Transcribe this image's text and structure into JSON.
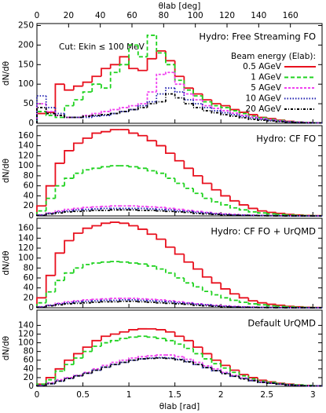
{
  "chart_data": [
    {
      "type": "histogram",
      "title": "Hydro: Free Streaming FO",
      "annotation": "Cut: Ekin ≤ 100 MeV",
      "x2label": "θlab [deg]",
      "x2lim": [
        0,
        180
      ],
      "x2ticks": [
        0,
        20,
        40,
        60,
        80,
        100,
        120,
        140,
        160
      ],
      "ylabel": "dN/dθ",
      "legend_title": "Beam energy (Elab):",
      "legend": "upper right",
      "xlim": [
        0,
        3.1
      ],
      "xticks": [
        0,
        0.5,
        1,
        1.5,
        2,
        2.5,
        3
      ],
      "ylim": [
        0,
        255
      ],
      "yticks": [
        0,
        50,
        100,
        150,
        200,
        250
      ],
      "bins": [
        0,
        0.1,
        0.2,
        0.3,
        0.4,
        0.5,
        0.6,
        0.7,
        0.8,
        0.9,
        1.0,
        1.1,
        1.2,
        1.3,
        1.4,
        1.5,
        1.6,
        1.7,
        1.8,
        1.9,
        2.0,
        2.1,
        2.2,
        2.3,
        2.4,
        2.5,
        2.6,
        2.7,
        2.8,
        2.9,
        3.0,
        3.1
      ],
      "series": [
        {
          "name": "0.5 AGeV",
          "color": "#e8101e",
          "linestyle": "solid",
          "values": [
            25,
            28,
            100,
            85,
            95,
            105,
            120,
            140,
            150,
            170,
            140,
            135,
            165,
            185,
            160,
            120,
            90,
            75,
            60,
            50,
            45,
            35,
            28,
            22,
            15,
            12,
            8,
            5,
            3,
            2,
            1
          ]
        },
        {
          "name": "1 AGeV",
          "color": "#1fd21f",
          "linestyle": "dashed",
          "values": [
            30,
            20,
            15,
            45,
            60,
            80,
            100,
            90,
            130,
            150,
            200,
            170,
            225,
            180,
            150,
            110,
            85,
            70,
            55,
            45,
            40,
            32,
            25,
            18,
            14,
            10,
            7,
            4,
            3,
            2,
            1
          ]
        },
        {
          "name": "5 AGeV",
          "color": "#f040f0",
          "linestyle": "short-dashed",
          "values": [
            50,
            30,
            20,
            15,
            15,
            20,
            25,
            30,
            35,
            40,
            45,
            50,
            80,
            125,
            130,
            100,
            75,
            60,
            45,
            38,
            32,
            26,
            20,
            16,
            12,
            9,
            6,
            4,
            3,
            2,
            1
          ]
        },
        {
          "name": "10 AGeV",
          "color": "#2020b0",
          "linestyle": "dotted",
          "values": [
            70,
            40,
            25,
            15,
            15,
            15,
            18,
            20,
            25,
            30,
            35,
            45,
            55,
            75,
            90,
            80,
            60,
            50,
            40,
            32,
            27,
            22,
            17,
            13,
            10,
            7,
            5,
            3,
            2,
            1,
            1
          ]
        },
        {
          "name": "20 AGeV",
          "color": "#000000",
          "linestyle": "dash-dot",
          "values": [
            40,
            25,
            20,
            15,
            15,
            18,
            20,
            22,
            25,
            30,
            35,
            40,
            50,
            55,
            75,
            65,
            50,
            40,
            32,
            27,
            22,
            18,
            14,
            10,
            8,
            6,
            4,
            3,
            2,
            1,
            1
          ]
        }
      ]
    },
    {
      "type": "histogram",
      "title": "Hydro: CF FO",
      "ylabel": "dN/dθ",
      "xlim": [
        0,
        3.1
      ],
      "xticks": [
        0,
        0.5,
        1,
        1.5,
        2,
        2.5,
        3
      ],
      "ylim": [
        0,
        180
      ],
      "yticks": [
        0,
        20,
        40,
        60,
        80,
        100,
        120,
        140,
        160
      ],
      "bins": [
        0,
        0.1,
        0.2,
        0.3,
        0.4,
        0.5,
        0.6,
        0.7,
        0.8,
        0.9,
        1.0,
        1.1,
        1.2,
        1.3,
        1.4,
        1.5,
        1.6,
        1.7,
        1.8,
        1.9,
        2.0,
        2.1,
        2.2,
        2.3,
        2.4,
        2.5,
        2.6,
        2.7,
        2.8,
        2.9,
        3.0,
        3.1
      ],
      "series": [
        {
          "color": "#e8101e",
          "linestyle": "solid",
          "values": [
            20,
            60,
            105,
            130,
            145,
            155,
            165,
            168,
            172,
            172,
            165,
            160,
            150,
            140,
            125,
            110,
            95,
            80,
            65,
            52,
            40,
            30,
            22,
            15,
            10,
            7,
            5,
            3,
            2,
            1,
            0.5
          ]
        },
        {
          "color": "#1fd21f",
          "linestyle": "dashed",
          "values": [
            10,
            35,
            60,
            75,
            85,
            92,
            95,
            98,
            100,
            100,
            98,
            95,
            90,
            85,
            75,
            65,
            55,
            45,
            35,
            28,
            22,
            16,
            12,
            8,
            6,
            4,
            3,
            2,
            1,
            0.5,
            0.3
          ]
        },
        {
          "color": "#f040f0",
          "linestyle": "short-dashed",
          "values": [
            2,
            6,
            10,
            13,
            15,
            17,
            18,
            19,
            20,
            20,
            20,
            19,
            18,
            17,
            15,
            13,
            11,
            9,
            7,
            5,
            4,
            3,
            2,
            1.5,
            1,
            0.7,
            0.5,
            0.3,
            0.2,
            0.1,
            0.1
          ]
        },
        {
          "color": "#2020b0",
          "linestyle": "dotted",
          "values": [
            2,
            5,
            8,
            10,
            12,
            13,
            14,
            15,
            15,
            15,
            15,
            15,
            14,
            13,
            12,
            10,
            9,
            7,
            6,
            4,
            3,
            2,
            1.5,
            1,
            0.7,
            0.5,
            0.3,
            0.2,
            0.1,
            0.1,
            0.1
          ]
        },
        {
          "color": "#000000",
          "linestyle": "dash-dot",
          "values": [
            1,
            4,
            6,
            8,
            9,
            10,
            11,
            11,
            12,
            12,
            12,
            11,
            11,
            10,
            9,
            8,
            7,
            5,
            4,
            3,
            2,
            1.5,
            1,
            0.7,
            0.5,
            0.3,
            0.2,
            0.1,
            0.1,
            0.1,
            0
          ]
        }
      ]
    },
    {
      "type": "histogram",
      "title": "Hydro: CF FO + UrQMD",
      "ylabel": "dN/dθ",
      "xlim": [
        0,
        3.1
      ],
      "xticks": [
        0,
        0.5,
        1,
        1.5,
        2,
        2.5,
        3
      ],
      "ylim": [
        0,
        180
      ],
      "yticks": [
        0,
        20,
        40,
        60,
        80,
        100,
        120,
        140,
        160
      ],
      "bins": [
        0,
        0.1,
        0.2,
        0.3,
        0.4,
        0.5,
        0.6,
        0.7,
        0.8,
        0.9,
        1.0,
        1.1,
        1.2,
        1.3,
        1.4,
        1.5,
        1.6,
        1.7,
        1.8,
        1.9,
        2.0,
        2.1,
        2.2,
        2.3,
        2.4,
        2.5,
        2.6,
        2.7,
        2.8,
        2.9,
        3.0,
        3.1
      ],
      "series": [
        {
          "color": "#e8101e",
          "linestyle": "solid",
          "values": [
            20,
            65,
            110,
            135,
            150,
            160,
            165,
            170,
            172,
            170,
            165,
            158,
            148,
            138,
            122,
            108,
            92,
            78,
            62,
            50,
            38,
            28,
            20,
            14,
            10,
            7,
            5,
            3,
            2,
            1,
            0.5
          ]
        },
        {
          "color": "#1fd21f",
          "linestyle": "dashed",
          "values": [
            10,
            32,
            55,
            70,
            80,
            87,
            90,
            92,
            93,
            92,
            90,
            88,
            84,
            78,
            70,
            60,
            50,
            42,
            33,
            26,
            20,
            15,
            11,
            8,
            6,
            4,
            3,
            2,
            1,
            0.5,
            0.3
          ]
        },
        {
          "color": "#f040f0",
          "linestyle": "short-dashed",
          "values": [
            2,
            5,
            9,
            12,
            14,
            16,
            17,
            18,
            19,
            19,
            19,
            18,
            17,
            16,
            14,
            12,
            10,
            8,
            6,
            5,
            4,
            3,
            2,
            1.5,
            1,
            0.7,
            0.5,
            0.3,
            0.2,
            0.1,
            0.1
          ]
        },
        {
          "color": "#2020b0",
          "linestyle": "dotted",
          "values": [
            2,
            5,
            8,
            10,
            12,
            13,
            14,
            15,
            15,
            16,
            16,
            15,
            14,
            13,
            12,
            10,
            9,
            7,
            6,
            4,
            3,
            2,
            1.5,
            1,
            0.7,
            0.5,
            0.3,
            0.2,
            0.1,
            0.1,
            0.1
          ]
        },
        {
          "color": "#000000",
          "linestyle": "dash-dot",
          "values": [
            1,
            4,
            6,
            8,
            9,
            10,
            11,
            12,
            12,
            13,
            13,
            12,
            11,
            10,
            9,
            8,
            7,
            5,
            4,
            3,
            2,
            1.5,
            1,
            0.7,
            0.5,
            0.3,
            0.2,
            0.1,
            0.1,
            0.1,
            0
          ]
        }
      ]
    },
    {
      "type": "histogram",
      "title": "Default UrQMD",
      "ylabel": "dN/dθ",
      "xlabel": "θlab [rad]",
      "xlim": [
        0,
        3.1
      ],
      "xticks": [
        0,
        0.5,
        1,
        1.5,
        2,
        2.5,
        3
      ],
      "ylim": [
        0,
        175
      ],
      "yticks": [
        0,
        20,
        40,
        60,
        80,
        100,
        120,
        140
      ],
      "bins": [
        0,
        0.1,
        0.2,
        0.3,
        0.4,
        0.5,
        0.6,
        0.7,
        0.8,
        0.9,
        1.0,
        1.1,
        1.2,
        1.3,
        1.4,
        1.5,
        1.6,
        1.7,
        1.8,
        1.9,
        2.0,
        2.1,
        2.2,
        2.3,
        2.4,
        2.5,
        2.6,
        2.7,
        2.8,
        2.9,
        3.0,
        3.1
      ],
      "series": [
        {
          "color": "#e8101e",
          "linestyle": "solid",
          "values": [
            5,
            20,
            40,
            60,
            75,
            90,
            105,
            115,
            120,
            125,
            130,
            132,
            132,
            130,
            125,
            115,
            105,
            90,
            75,
            60,
            48,
            37,
            27,
            20,
            14,
            10,
            7,
            5,
            3,
            2,
            1
          ]
        },
        {
          "color": "#1fd21f",
          "linestyle": "dashed",
          "values": [
            5,
            15,
            35,
            50,
            65,
            80,
            92,
            100,
            105,
            110,
            113,
            115,
            113,
            110,
            105,
            97,
            87,
            75,
            63,
            52,
            42,
            32,
            24,
            17,
            12,
            9,
            6,
            4,
            3,
            2,
            1
          ]
        },
        {
          "color": "#f040f0",
          "linestyle": "short-dashed",
          "values": [
            2,
            8,
            15,
            20,
            25,
            32,
            40,
            48,
            55,
            60,
            65,
            68,
            70,
            72,
            72,
            68,
            62,
            55,
            47,
            40,
            32,
            25,
            19,
            14,
            10,
            7,
            5,
            3,
            2,
            1,
            1
          ]
        },
        {
          "color": "#2020b0",
          "linestyle": "dotted",
          "values": [
            2,
            6,
            12,
            18,
            24,
            30,
            37,
            44,
            50,
            55,
            60,
            63,
            65,
            66,
            65,
            62,
            57,
            50,
            43,
            36,
            30,
            23,
            18,
            13,
            9,
            7,
            5,
            3,
            2,
            1,
            1
          ]
        },
        {
          "color": "#000000",
          "linestyle": "dash-dot",
          "values": [
            1,
            6,
            12,
            18,
            24,
            30,
            37,
            44,
            50,
            55,
            60,
            63,
            64,
            65,
            64,
            61,
            56,
            50,
            43,
            36,
            29,
            23,
            17,
            13,
            9,
            7,
            5,
            3,
            2,
            1,
            1
          ]
        }
      ]
    }
  ]
}
